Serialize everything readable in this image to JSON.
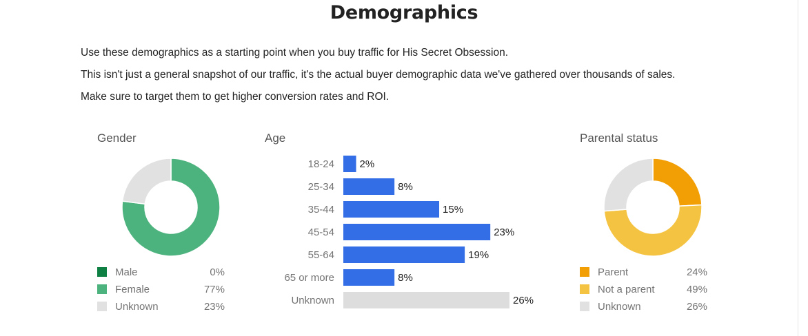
{
  "title": "Demographics",
  "intro": [
    "Use these demographics as a starting point when you buy traffic for His Secret Obsession.",
    "This isn't just a general snapshot of our traffic, it's the actual buyer demographic data we've gathered over thousands of sales.",
    "Make sure to target them to get higher conversion rates and ROI."
  ],
  "chart_data": [
    {
      "type": "pie",
      "title": "Gender",
      "donut": true,
      "labels": [
        "Male",
        "Female",
        "Unknown"
      ],
      "values": [
        0,
        77,
        23
      ],
      "display_values": [
        "0%",
        "77%",
        "23%"
      ],
      "colors": [
        "#0f8043",
        "#4db37e",
        "#e1e1e1"
      ]
    },
    {
      "type": "bar",
      "orientation": "horizontal",
      "title": "Age",
      "categories": [
        "18-24",
        "25-34",
        "35-44",
        "45-54",
        "55-64",
        "65 or more",
        "Unknown"
      ],
      "values": [
        2,
        8,
        15,
        23,
        19,
        8,
        26
      ],
      "display_values": [
        "2%",
        "8%",
        "15%",
        "23%",
        "19%",
        "8%",
        "26%"
      ],
      "colors": [
        "#346ee6",
        "#346ee6",
        "#346ee6",
        "#346ee6",
        "#346ee6",
        "#346ee6",
        "#dddddd"
      ],
      "xlim": [
        0,
        26
      ]
    },
    {
      "type": "pie",
      "title": "Parental status",
      "donut": true,
      "labels": [
        "Parent",
        "Not a parent",
        "Unknown"
      ],
      "values": [
        24,
        49,
        26
      ],
      "display_values": [
        "24%",
        "49%",
        "26%"
      ],
      "colors": [
        "#f29f05",
        "#f5c342",
        "#e1e1e1"
      ]
    }
  ]
}
